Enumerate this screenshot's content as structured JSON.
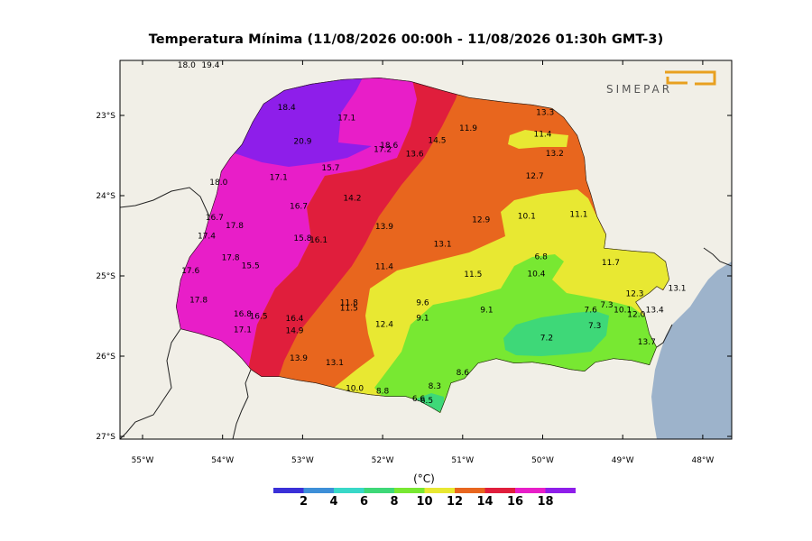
{
  "title": "Temperatura Mínima (11/08/2026 00:00h - 11/08/2026 01:30h GMT-3)",
  "logo_text": "SIMEPAR",
  "units": "(°C)",
  "lat_ticks": [
    "23°S",
    "24°S",
    "25°S",
    "26°S",
    "27°S"
  ],
  "lon_ticks": [
    "55°W",
    "54°W",
    "53°W",
    "52°W",
    "51°W",
    "50°W",
    "49°W",
    "48°W"
  ],
  "colorbar": {
    "colors": [
      "#3a30d8",
      "#3d8fd8",
      "#38d8c8",
      "#3ed878",
      "#78e832",
      "#e8e832",
      "#e8661e",
      "#e01e3c",
      "#e81ec8",
      "#8e1eea"
    ],
    "labels": [
      "2",
      "4",
      "6",
      "8",
      "10",
      "12",
      "14",
      "16",
      "18"
    ]
  },
  "colors": {
    "ocean": "#9db3cb",
    "land_outside": "#f1efe7",
    "purple": "#8e1eea",
    "magenta": "#e81ec8",
    "red": "#e01e3c",
    "orange": "#e8661e",
    "yellow": "#e8e832",
    "lightgreen": "#78e832",
    "green": "#3ed878"
  },
  "stations": [
    {
      "v": "18.0",
      "lon": -54.45,
      "lat": -22.37
    },
    {
      "v": "19.4",
      "lon": -54.15,
      "lat": -22.37
    },
    {
      "v": "18.4",
      "lon": -53.2,
      "lat": -22.9
    },
    {
      "v": "17.1",
      "lon": -52.45,
      "lat": -23.03
    },
    {
      "v": "20.9",
      "lon": -53.0,
      "lat": -23.32
    },
    {
      "v": "18.6",
      "lon": -51.92,
      "lat": -23.37
    },
    {
      "v": "17.2",
      "lon": -52.0,
      "lat": -23.42
    },
    {
      "v": "14.5",
      "lon": -51.32,
      "lat": -23.31
    },
    {
      "v": "13.6",
      "lon": -51.6,
      "lat": -23.48
    },
    {
      "v": "11.9",
      "lon": -50.93,
      "lat": -23.16
    },
    {
      "v": "11.4",
      "lon": -50.0,
      "lat": -23.23
    },
    {
      "v": "13.3",
      "lon": -49.97,
      "lat": -22.96
    },
    {
      "v": "13.2",
      "lon": -49.85,
      "lat": -23.47
    },
    {
      "v": "15.7",
      "lon": -52.65,
      "lat": -23.65
    },
    {
      "v": "17.1",
      "lon": -53.3,
      "lat": -23.77
    },
    {
      "v": "18.0",
      "lon": -54.05,
      "lat": -23.83
    },
    {
      "v": "12.7",
      "lon": -50.1,
      "lat": -23.75
    },
    {
      "v": "14.2",
      "lon": -52.38,
      "lat": -24.03
    },
    {
      "v": "16.7",
      "lon": -53.05,
      "lat": -24.13
    },
    {
      "v": "16.7",
      "lon": -54.1,
      "lat": -24.27
    },
    {
      "v": "17.8",
      "lon": -53.85,
      "lat": -24.37
    },
    {
      "v": "13.9",
      "lon": -51.98,
      "lat": -24.38
    },
    {
      "v": "12.9",
      "lon": -50.77,
      "lat": -24.3
    },
    {
      "v": "10.1",
      "lon": -50.2,
      "lat": -24.25
    },
    {
      "v": "11.1",
      "lon": -49.55,
      "lat": -24.23
    },
    {
      "v": "17.4",
      "lon": -54.2,
      "lat": -24.5
    },
    {
      "v": "15.8",
      "lon": -53.0,
      "lat": -24.53
    },
    {
      "v": "16.1",
      "lon": -52.8,
      "lat": -24.55
    },
    {
      "v": "13.1",
      "lon": -51.25,
      "lat": -24.6
    },
    {
      "v": "17.8",
      "lon": -53.9,
      "lat": -24.77
    },
    {
      "v": "15.5",
      "lon": -53.65,
      "lat": -24.87
    },
    {
      "v": "17.6",
      "lon": -54.4,
      "lat": -24.93
    },
    {
      "v": "11.4",
      "lon": -51.98,
      "lat": -24.88
    },
    {
      "v": "6.8",
      "lon": -50.02,
      "lat": -24.76
    },
    {
      "v": "11.7",
      "lon": -49.15,
      "lat": -24.83
    },
    {
      "v": "11.5",
      "lon": -50.87,
      "lat": -24.98
    },
    {
      "v": "10.4",
      "lon": -50.08,
      "lat": -24.97
    },
    {
      "v": "13.1",
      "lon": -48.32,
      "lat": -25.15
    },
    {
      "v": "12.3",
      "lon": -48.85,
      "lat": -25.22
    },
    {
      "v": "17.8",
      "lon": -54.3,
      "lat": -25.3
    },
    {
      "v": "11.8",
      "lon": -52.42,
      "lat": -25.33
    },
    {
      "v": "11.5",
      "lon": -52.42,
      "lat": -25.4
    },
    {
      "v": "9.6",
      "lon": -51.5,
      "lat": -25.33
    },
    {
      "v": "7.3",
      "lon": -49.2,
      "lat": -25.36
    },
    {
      "v": "9.1",
      "lon": -50.7,
      "lat": -25.42
    },
    {
      "v": "7.6",
      "lon": -49.4,
      "lat": -25.42
    },
    {
      "v": "10.1",
      "lon": -49.0,
      "lat": -25.42
    },
    {
      "v": "13.4",
      "lon": -48.6,
      "lat": -25.42
    },
    {
      "v": "12.0",
      "lon": -48.83,
      "lat": -25.48
    },
    {
      "v": "16.8",
      "lon": -53.75,
      "lat": -25.47
    },
    {
      "v": "16.5",
      "lon": -53.55,
      "lat": -25.5
    },
    {
      "v": "16.4",
      "lon": -53.1,
      "lat": -25.53
    },
    {
      "v": "9.1",
      "lon": -51.5,
      "lat": -25.52
    },
    {
      "v": "12.4",
      "lon": -51.98,
      "lat": -25.6
    },
    {
      "v": "7.3",
      "lon": -49.35,
      "lat": -25.62
    },
    {
      "v": "17.1",
      "lon": -53.75,
      "lat": -25.67
    },
    {
      "v": "14.9",
      "lon": -53.1,
      "lat": -25.68
    },
    {
      "v": "7.2",
      "lon": -49.95,
      "lat": -25.77
    },
    {
      "v": "13.7",
      "lon": -48.7,
      "lat": -25.82
    },
    {
      "v": "13.9",
      "lon": -53.05,
      "lat": -26.02
    },
    {
      "v": "13.1",
      "lon": -52.6,
      "lat": -26.08
    },
    {
      "v": "8.6",
      "lon": -51.0,
      "lat": -26.2
    },
    {
      "v": "8.3",
      "lon": -51.35,
      "lat": -26.37
    },
    {
      "v": "10.0",
      "lon": -52.35,
      "lat": -26.4
    },
    {
      "v": "8.8",
      "lon": -52.0,
      "lat": -26.43
    },
    {
      "v": "6.6",
      "lon": -51.55,
      "lat": -26.53
    },
    {
      "v": "6.5",
      "lon": -51.45,
      "lat": -26.55
    }
  ]
}
